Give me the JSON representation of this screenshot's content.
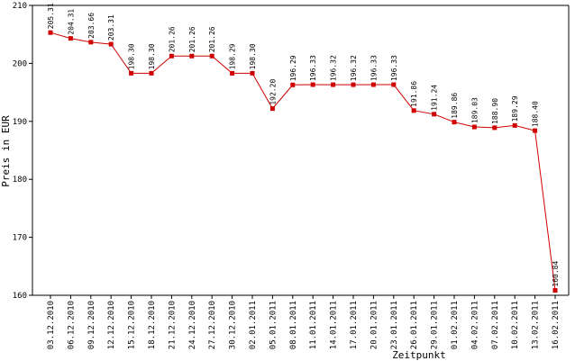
{
  "chart_data": {
    "type": "line",
    "title": "",
    "xlabel": "Zeitpunkt",
    "ylabel": "Preis in EUR",
    "ylim": [
      160,
      210
    ],
    "yticks": [
      "160",
      "170",
      "180",
      "190",
      "200",
      "210"
    ],
    "grid": false,
    "legend": "none",
    "line_color": "#d00000",
    "marker_color": "#d00000",
    "categories": [
      "03.12.2010",
      "06.12.2010",
      "09.12.2010",
      "12.12.2010",
      "15.12.2010",
      "18.12.2010",
      "21.12.2010",
      "24.12.2010",
      "27.12.2010",
      "30.12.2010",
      "02.01.2011",
      "05.01.2011",
      "08.01.2011",
      "11.01.2011",
      "14.01.2011",
      "17.01.2011",
      "20.01.2011",
      "23.01.2011",
      "26.01.2011",
      "29.01.2011",
      "01.02.2011",
      "04.02.2011",
      "07.02.2011",
      "10.02.2011",
      "13.02.2011",
      "16.02.2011"
    ],
    "points": [
      {
        "x": 0,
        "y": 205.31,
        "label": "205.31"
      },
      {
        "x": 1,
        "y": 204.31,
        "label": "204.31"
      },
      {
        "x": 2,
        "y": 203.66,
        "label": "203.66"
      },
      {
        "x": 3,
        "y": 203.31,
        "label": "203.31"
      },
      {
        "x": 4,
        "y": 198.3,
        "label": "198.30"
      },
      {
        "x": 5,
        "y": 198.3,
        "label": "198.30"
      },
      {
        "x": 6,
        "y": 201.26,
        "label": "201.26"
      },
      {
        "x": 7,
        "y": 201.26,
        "label": "201.26"
      },
      {
        "x": 8,
        "y": 201.26,
        "label": "201.26"
      },
      {
        "x": 9,
        "y": 198.29,
        "label": "198.29"
      },
      {
        "x": 10,
        "y": 198.3,
        "label": "198.30"
      },
      {
        "x": 11,
        "y": 192.2,
        "label": "192.20"
      },
      {
        "x": 12,
        "y": 196.29,
        "label": "196.29"
      },
      {
        "x": 13,
        "y": 196.33,
        "label": "196.33"
      },
      {
        "x": 14,
        "y": 196.32,
        "label": "196.32"
      },
      {
        "x": 15,
        "y": 196.32,
        "label": "196.32"
      },
      {
        "x": 16,
        "y": 196.33,
        "label": "196.33"
      },
      {
        "x": 17,
        "y": 196.33,
        "label": "196.33"
      },
      {
        "x": 18,
        "y": 191.86,
        "label": "191.86"
      },
      {
        "x": 19,
        "y": 191.24,
        "label": "191.24"
      },
      {
        "x": 20,
        "y": 189.86,
        "label": "189.86"
      },
      {
        "x": 21,
        "y": 189.03,
        "label": "189.03"
      },
      {
        "x": 22,
        "y": 188.9,
        "label": "188.90"
      },
      {
        "x": 23,
        "y": 189.29,
        "label": "189.29"
      },
      {
        "x": 24,
        "y": 188.4,
        "label": "188.40"
      },
      {
        "x": 25,
        "y": 160.84,
        "label": "160.84"
      }
    ]
  }
}
